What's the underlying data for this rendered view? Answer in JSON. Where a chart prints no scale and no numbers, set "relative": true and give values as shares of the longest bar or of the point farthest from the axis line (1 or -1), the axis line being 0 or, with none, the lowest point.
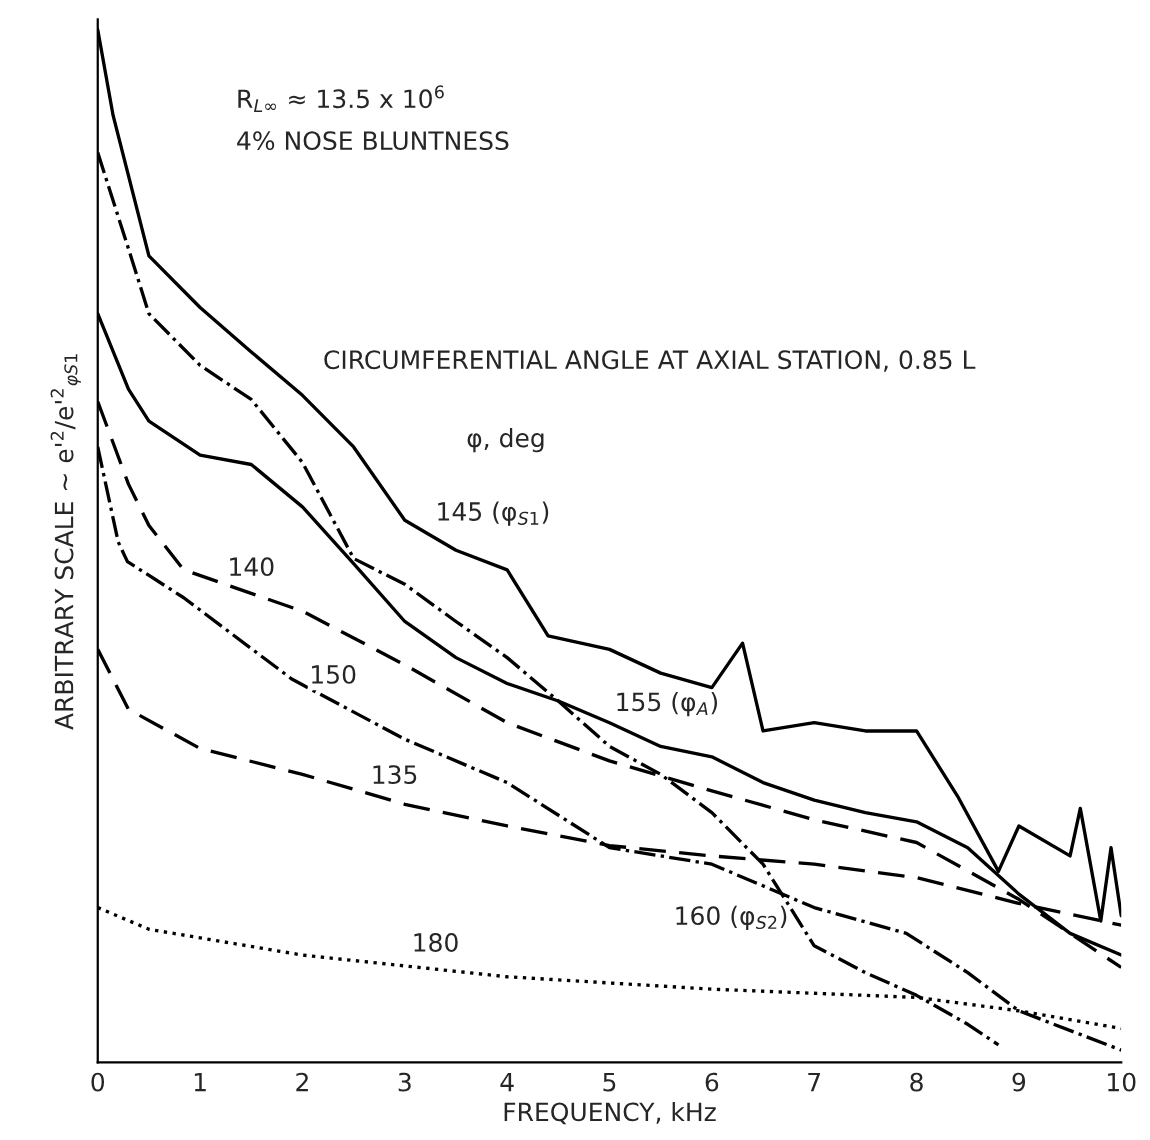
{
  "chart_data": {
    "type": "line",
    "relative": true,
    "xlabel": "FREQUENCY, kHz",
    "ylabel": "ARBITRARY SCALE ~ e'$^{2}$/e'$^{2}$$_{φS1}$",
    "legend_title": "φ, deg",
    "annotations": [
      "R$_{L∞}$ ≈ 13.5 x 10$^{6}$",
      "4% NOSE BLUNTNESS",
      "CIRCUMFERENTIAL ANGLE AT AXIAL STATION, 0.85 L"
    ],
    "xlim": [
      0,
      10
    ],
    "xticks": [
      0,
      1,
      2,
      3,
      4,
      5,
      6,
      7,
      8,
      9,
      10
    ],
    "grid": false,
    "legend": false,
    "series": [
      {
        "name": "145 (φ$_{S1}$)",
        "color": "#000000",
        "line_style": "solid",
        "x": [
          0,
          0.15,
          0.5,
          1,
          1.5,
          2,
          2.5,
          3,
          3.5,
          4,
          4.4,
          5,
          5.5,
          6,
          6.3,
          6.5,
          7,
          7.5,
          8,
          8.4,
          8.8,
          9,
          9.5,
          9.6,
          9.8,
          9.9,
          10
        ],
        "values": [
          1.0,
          0.917,
          0.781,
          0.731,
          0.688,
          0.646,
          0.596,
          0.525,
          0.496,
          0.477,
          0.413,
          0.4,
          0.377,
          0.363,
          0.406,
          0.321,
          0.329,
          0.321,
          0.321,
          0.258,
          0.185,
          0.229,
          0.2,
          0.246,
          0.137,
          0.208,
          0.142
        ]
      },
      {
        "name": "155 (φ$_{A}$)",
        "color": "#000000",
        "line_style": "solid",
        "x": [
          0,
          0.3,
          0.5,
          1,
          1.5,
          2,
          2.5,
          3,
          3.5,
          4,
          4.5,
          5,
          5.5,
          6,
          6.5,
          7,
          7.5,
          8,
          8.5,
          9,
          9.5,
          10
        ],
        "values": [
          0.725,
          0.652,
          0.621,
          0.588,
          0.579,
          0.538,
          0.483,
          0.427,
          0.392,
          0.367,
          0.35,
          0.329,
          0.306,
          0.296,
          0.271,
          0.254,
          0.242,
          0.233,
          0.208,
          0.163,
          0.125,
          0.104
        ]
      },
      {
        "name": "160 (φ$_{S2}$)",
        "color": "#000000",
        "line_style": "dashdot",
        "x": [
          0,
          0.3,
          0.5,
          1,
          1.5,
          2,
          2.5,
          3,
          3.5,
          4,
          4.5,
          5,
          5.5,
          6,
          6.5,
          7,
          7.5,
          8,
          8.5,
          8.8
        ],
        "values": [
          0.881,
          0.788,
          0.725,
          0.675,
          0.642,
          0.581,
          0.488,
          0.463,
          0.427,
          0.392,
          0.35,
          0.306,
          0.279,
          0.242,
          0.192,
          0.113,
          0.087,
          0.065,
          0.037,
          0.017
        ]
      },
      {
        "name": "140",
        "color": "#000000",
        "line_style": "dashed",
        "x": [
          0,
          0.3,
          0.5,
          0.84,
          2,
          3,
          4,
          5,
          6,
          7,
          8,
          9,
          10
        ],
        "values": [
          0.64,
          0.56,
          0.52,
          0.477,
          0.437,
          0.385,
          0.329,
          0.292,
          0.263,
          0.235,
          0.213,
          0.158,
          0.092
        ]
      },
      {
        "name": "150",
        "color": "#000000",
        "line_style": "dashdot",
        "x": [
          0,
          0.2,
          0.29,
          0.84,
          1.9,
          3,
          4,
          5,
          6,
          7,
          7.9,
          8.5,
          9,
          10
        ],
        "values": [
          0.596,
          0.504,
          0.485,
          0.45,
          0.371,
          0.313,
          0.271,
          0.208,
          0.192,
          0.15,
          0.125,
          0.087,
          0.05,
          0.012
        ]
      },
      {
        "name": "135",
        "color": "#000000",
        "line_style": "dashed",
        "x": [
          0,
          0.3,
          1,
          2,
          3,
          4,
          5,
          6,
          7,
          8,
          9,
          10
        ],
        "values": [
          0.4,
          0.342,
          0.304,
          0.279,
          0.25,
          0.229,
          0.21,
          0.2,
          0.192,
          0.179,
          0.154,
          0.133
        ]
      },
      {
        "name": "180",
        "color": "#000000",
        "line_style": "dotted",
        "x": [
          0,
          0.5,
          2,
          4,
          6,
          8,
          9,
          10
        ],
        "values": [
          0.15,
          0.129,
          0.104,
          0.083,
          0.071,
          0.063,
          0.05,
          0.033
        ]
      }
    ]
  }
}
